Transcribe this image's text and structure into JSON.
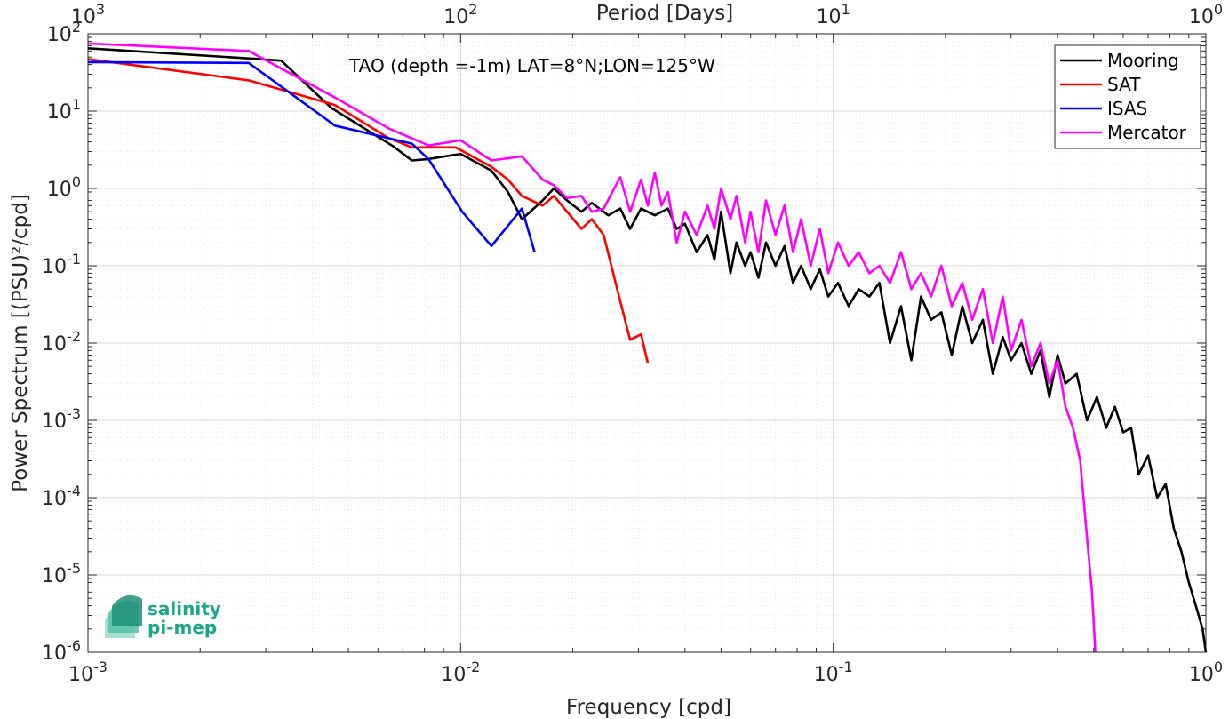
{
  "chart_data": {
    "type": "line",
    "title": "TAO (depth =-1m) LAT=8°N;LON=125°W",
    "xlabel": "Frequency [cpd]",
    "ylabel": "Power Spectrum [(PSU)²/cpd]",
    "top_xlabel": "Period [Days]",
    "xscale": "log",
    "yscale": "log",
    "xlim": [
      0.001,
      1
    ],
    "ylim": [
      1e-06,
      100
    ],
    "grid": true,
    "legend_position": "top-right",
    "x_ticks": [
      {
        "value": 0.001,
        "base": "10",
        "exp": "-3"
      },
      {
        "value": 0.01,
        "base": "10",
        "exp": "-2"
      },
      {
        "value": 0.1,
        "base": "10",
        "exp": "-1"
      },
      {
        "value": 1,
        "base": "10",
        "exp": "0"
      }
    ],
    "top_x_ticks": [
      {
        "value": 0.001,
        "base": "10",
        "exp": "3"
      },
      {
        "value": 0.01,
        "base": "10",
        "exp": "2"
      },
      {
        "value": 0.1,
        "base": "10",
        "exp": "1"
      },
      {
        "value": 1,
        "base": "10",
        "exp": "0"
      }
    ],
    "y_ticks": [
      {
        "value": 100,
        "base": "10",
        "exp": "2"
      },
      {
        "value": 10,
        "base": "10",
        "exp": "1"
      },
      {
        "value": 1,
        "base": "10",
        "exp": "0"
      },
      {
        "value": 0.1,
        "base": "10",
        "exp": "-1"
      },
      {
        "value": 0.01,
        "base": "10",
        "exp": "-2"
      },
      {
        "value": 0.001,
        "base": "10",
        "exp": "-3"
      },
      {
        "value": 0.0001,
        "base": "10",
        "exp": "-4"
      },
      {
        "value": 1e-05,
        "base": "10",
        "exp": "-5"
      },
      {
        "value": 1e-06,
        "base": "10",
        "exp": "-6"
      }
    ],
    "series": [
      {
        "name": "Mooring",
        "color": "#000000",
        "x": [
          0.001,
          0.0027,
          0.0033,
          0.0045,
          0.0066,
          0.0074,
          0.0082,
          0.01,
          0.0121,
          0.0134,
          0.0146,
          0.0166,
          0.0178,
          0.0193,
          0.0211,
          0.0225,
          0.0249,
          0.0268,
          0.0285,
          0.0305,
          0.0332,
          0.036,
          0.038,
          0.04,
          0.043,
          0.046,
          0.048,
          0.05,
          0.053,
          0.055,
          0.058,
          0.06,
          0.063,
          0.066,
          0.07,
          0.074,
          0.078,
          0.082,
          0.087,
          0.092,
          0.097,
          0.103,
          0.11,
          0.117,
          0.125,
          0.133,
          0.142,
          0.152,
          0.162,
          0.172,
          0.183,
          0.195,
          0.208,
          0.222,
          0.236,
          0.252,
          0.268,
          0.285,
          0.3,
          0.32,
          0.34,
          0.36,
          0.38,
          0.4,
          0.42,
          0.45,
          0.48,
          0.51,
          0.54,
          0.57,
          0.6,
          0.63,
          0.66,
          0.7,
          0.74,
          0.78,
          0.82,
          0.86,
          0.9,
          0.94,
          0.98,
          1.0
        ],
        "y": [
          65,
          48,
          45,
          11,
          3.5,
          2.3,
          2.4,
          2.8,
          1.7,
          0.9,
          0.4,
          0.7,
          1.0,
          0.7,
          0.5,
          0.65,
          0.45,
          0.55,
          0.3,
          0.55,
          0.45,
          0.55,
          0.3,
          0.35,
          0.15,
          0.25,
          0.12,
          0.5,
          0.08,
          0.2,
          0.1,
          0.15,
          0.07,
          0.2,
          0.1,
          0.18,
          0.06,
          0.1,
          0.05,
          0.09,
          0.04,
          0.06,
          0.03,
          0.05,
          0.04,
          0.06,
          0.01,
          0.03,
          0.006,
          0.04,
          0.02,
          0.025,
          0.007,
          0.03,
          0.01,
          0.02,
          0.004,
          0.012,
          0.006,
          0.01,
          0.004,
          0.008,
          0.002,
          0.007,
          0.003,
          0.004,
          0.001,
          0.002,
          0.0008,
          0.0015,
          0.0007,
          0.0008,
          0.0002,
          0.00035,
          0.0001,
          0.00015,
          4e-05,
          2e-05,
          8e-06,
          4e-06,
          2e-06,
          1e-06
        ]
      },
      {
        "name": "SAT",
        "color": "#ff0000",
        "x": [
          0.001,
          0.0027,
          0.0046,
          0.0064,
          0.0074,
          0.0085,
          0.0097,
          0.0121,
          0.0134,
          0.0146,
          0.0166,
          0.0178,
          0.0193,
          0.0211,
          0.0225,
          0.0242,
          0.0268,
          0.0285,
          0.0305,
          0.0318
        ],
        "y": [
          47,
          25,
          12,
          4.5,
          3.4,
          3.4,
          3.4,
          1.9,
          1.3,
          0.8,
          0.6,
          0.8,
          0.5,
          0.3,
          0.4,
          0.25,
          0.035,
          0.011,
          0.013,
          0.0055
        ]
      },
      {
        "name": "ISAS",
        "color": "#0000ff",
        "x": [
          0.001,
          0.0027,
          0.0046,
          0.0074,
          0.0082,
          0.0101,
          0.0121,
          0.0146,
          0.0158
        ],
        "y": [
          43,
          42,
          6.5,
          3.8,
          2.4,
          0.5,
          0.18,
          0.55,
          0.15
        ]
      },
      {
        "name": "Mercator",
        "color": "#ff00ff",
        "x": [
          0.001,
          0.0027,
          0.0046,
          0.0064,
          0.0082,
          0.01,
          0.0121,
          0.0146,
          0.0166,
          0.0178,
          0.0193,
          0.0211,
          0.0225,
          0.0242,
          0.0268,
          0.0285,
          0.0305,
          0.0318,
          0.0332,
          0.0346,
          0.036,
          0.038,
          0.04,
          0.043,
          0.046,
          0.048,
          0.05,
          0.053,
          0.055,
          0.058,
          0.06,
          0.063,
          0.066,
          0.07,
          0.074,
          0.078,
          0.082,
          0.087,
          0.092,
          0.097,
          0.103,
          0.11,
          0.117,
          0.125,
          0.133,
          0.142,
          0.152,
          0.162,
          0.172,
          0.183,
          0.195,
          0.208,
          0.222,
          0.236,
          0.252,
          0.268,
          0.285,
          0.3,
          0.32,
          0.34,
          0.36,
          0.38,
          0.4,
          0.42,
          0.44,
          0.46,
          0.48,
          0.495,
          0.505
        ],
        "y": [
          75,
          60,
          15,
          6,
          3.6,
          4.2,
          2.3,
          2.6,
          1.3,
          1.1,
          0.75,
          0.8,
          0.5,
          0.55,
          1.4,
          0.5,
          1.3,
          0.6,
          1.6,
          0.6,
          0.9,
          0.2,
          0.5,
          0.25,
          0.6,
          0.3,
          1.0,
          0.4,
          0.8,
          0.2,
          0.5,
          0.15,
          0.7,
          0.25,
          0.6,
          0.15,
          0.4,
          0.1,
          0.3,
          0.08,
          0.2,
          0.1,
          0.15,
          0.08,
          0.1,
          0.06,
          0.15,
          0.05,
          0.08,
          0.04,
          0.1,
          0.03,
          0.06,
          0.02,
          0.05,
          0.01,
          0.04,
          0.008,
          0.02,
          0.005,
          0.01,
          0.003,
          0.006,
          0.0015,
          0.0008,
          0.0003,
          3e-05,
          6e-06,
          1e-06
        ]
      }
    ]
  },
  "logo": {
    "line1": "salinity",
    "line2": "pi-mep"
  }
}
